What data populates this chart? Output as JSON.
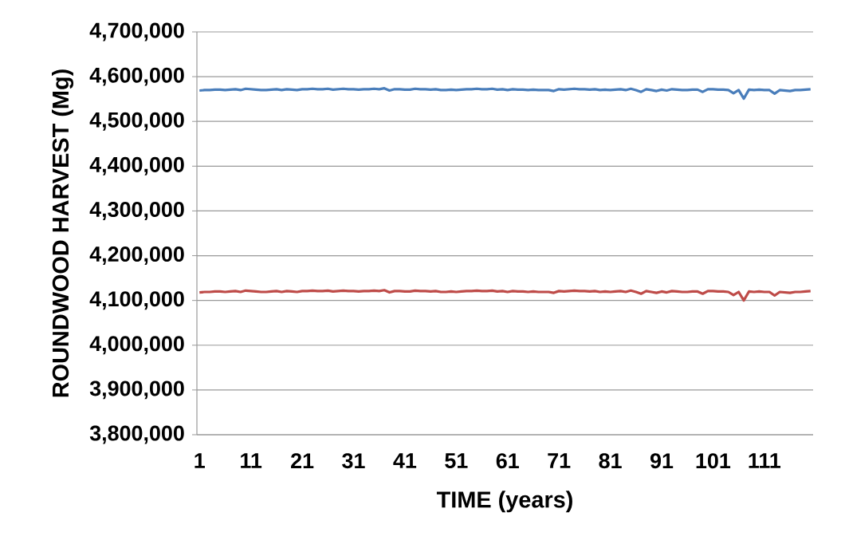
{
  "chart_data": {
    "type": "line",
    "xlabel": "TIME (years)",
    "ylabel": "ROUNDWOOD HARVEST (Mg)",
    "categories": [
      "1",
      null,
      null,
      null,
      null,
      null,
      null,
      null,
      null,
      null,
      "11",
      null,
      null,
      null,
      null,
      null,
      null,
      null,
      null,
      null,
      "21",
      null,
      null,
      null,
      null,
      null,
      null,
      null,
      null,
      null,
      "31",
      null,
      null,
      null,
      null,
      null,
      null,
      null,
      null,
      null,
      "41",
      null,
      null,
      null,
      null,
      null,
      null,
      null,
      null,
      null,
      "51",
      null,
      null,
      null,
      null,
      null,
      null,
      null,
      null,
      null,
      "61",
      null,
      null,
      null,
      null,
      null,
      null,
      null,
      null,
      null,
      "71",
      null,
      null,
      null,
      null,
      null,
      null,
      null,
      null,
      null,
      "81",
      null,
      null,
      null,
      null,
      null,
      null,
      null,
      null,
      null,
      "91",
      null,
      null,
      null,
      null,
      null,
      null,
      null,
      null,
      null,
      "101",
      null,
      null,
      null,
      null,
      null,
      null,
      null,
      null,
      null,
      "111",
      null,
      null,
      null,
      null,
      null,
      null,
      null,
      null,
      null
    ],
    "series": [
      {
        "color": "#4a7ebb",
        "values": [
          4569000,
          4570000,
          4570000,
          4571000,
          4571000,
          4570000,
          4571000,
          4572000,
          4570000,
          4573000,
          4572000,
          4571000,
          4570000,
          4570000,
          4571000,
          4572000,
          4570000,
          4572000,
          4571000,
          4570000,
          4572000,
          4572000,
          4573000,
          4572000,
          4572000,
          4573000,
          4571000,
          4572000,
          4573000,
          4572000,
          4572000,
          4571000,
          4572000,
          4572000,
          4573000,
          4572000,
          4574000,
          4569000,
          4572000,
          4572000,
          4571000,
          4571000,
          4573000,
          4572000,
          4572000,
          4571000,
          4572000,
          4570000,
          4570000,
          4571000,
          4570000,
          4571000,
          4572000,
          4572000,
          4573000,
          4572000,
          4572000,
          4573000,
          4571000,
          4572000,
          4570000,
          4572000,
          4571000,
          4571000,
          4570000,
          4571000,
          4570000,
          4570000,
          4570000,
          4568000,
          4572000,
          4571000,
          4572000,
          4573000,
          4572000,
          4572000,
          4571000,
          4572000,
          4570000,
          4571000,
          4570000,
          4571000,
          4572000,
          4570000,
          4573000,
          4570000,
          4566000,
          4572000,
          4570000,
          4568000,
          4571000,
          4569000,
          4572000,
          4571000,
          4570000,
          4570000,
          4571000,
          4571000,
          4566000,
          4572000,
          4572000,
          4571000,
          4571000,
          4570000,
          4563000,
          4570000,
          4551000,
          4571000,
          4570000,
          4571000,
          4570000,
          4570000,
          4562000,
          4570000,
          4569000,
          4568000,
          4570000,
          4570000,
          4571000,
          4572000
        ]
      },
      {
        "color": "#be4b48",
        "values": [
          4118000,
          4119000,
          4119000,
          4120000,
          4120000,
          4119000,
          4120000,
          4121000,
          4119000,
          4122000,
          4121000,
          4120000,
          4119000,
          4119000,
          4120000,
          4121000,
          4119000,
          4121000,
          4120000,
          4119000,
          4121000,
          4121000,
          4122000,
          4121000,
          4121000,
          4122000,
          4120000,
          4121000,
          4122000,
          4121000,
          4121000,
          4120000,
          4121000,
          4121000,
          4122000,
          4121000,
          4123000,
          4118000,
          4121000,
          4121000,
          4120000,
          4120000,
          4122000,
          4121000,
          4121000,
          4120000,
          4121000,
          4119000,
          4119000,
          4120000,
          4119000,
          4120000,
          4121000,
          4121000,
          4122000,
          4121000,
          4121000,
          4122000,
          4120000,
          4121000,
          4119000,
          4121000,
          4120000,
          4120000,
          4119000,
          4120000,
          4119000,
          4119000,
          4119000,
          4117000,
          4121000,
          4120000,
          4121000,
          4122000,
          4121000,
          4121000,
          4120000,
          4121000,
          4119000,
          4120000,
          4119000,
          4120000,
          4121000,
          4119000,
          4122000,
          4119000,
          4115000,
          4121000,
          4119000,
          4117000,
          4120000,
          4118000,
          4121000,
          4120000,
          4119000,
          4119000,
          4120000,
          4120000,
          4115000,
          4121000,
          4121000,
          4120000,
          4120000,
          4119000,
          4112000,
          4119000,
          4100000,
          4120000,
          4119000,
          4120000,
          4119000,
          4119000,
          4111000,
          4119000,
          4118000,
          4117000,
          4119000,
          4119000,
          4120000,
          4121000
        ]
      }
    ],
    "ylim": [
      3800000,
      4700000
    ],
    "yticks": [
      {
        "value": 3800000,
        "label": "3,800,000"
      },
      {
        "value": 3900000,
        "label": "3,900,000"
      },
      {
        "value": 4000000,
        "label": "4,000,000"
      },
      {
        "value": 4100000,
        "label": "4,100,000"
      },
      {
        "value": 4200000,
        "label": "4,200,000"
      },
      {
        "value": 4300000,
        "label": "4,300,000"
      },
      {
        "value": 4400000,
        "label": "4,400,000"
      },
      {
        "value": 4500000,
        "label": "4,500,000"
      },
      {
        "value": 4600000,
        "label": "4,600,000"
      },
      {
        "value": 4700000,
        "label": "4,700,000"
      }
    ],
    "grid": "y",
    "marker": "none",
    "line_style": "solid"
  }
}
